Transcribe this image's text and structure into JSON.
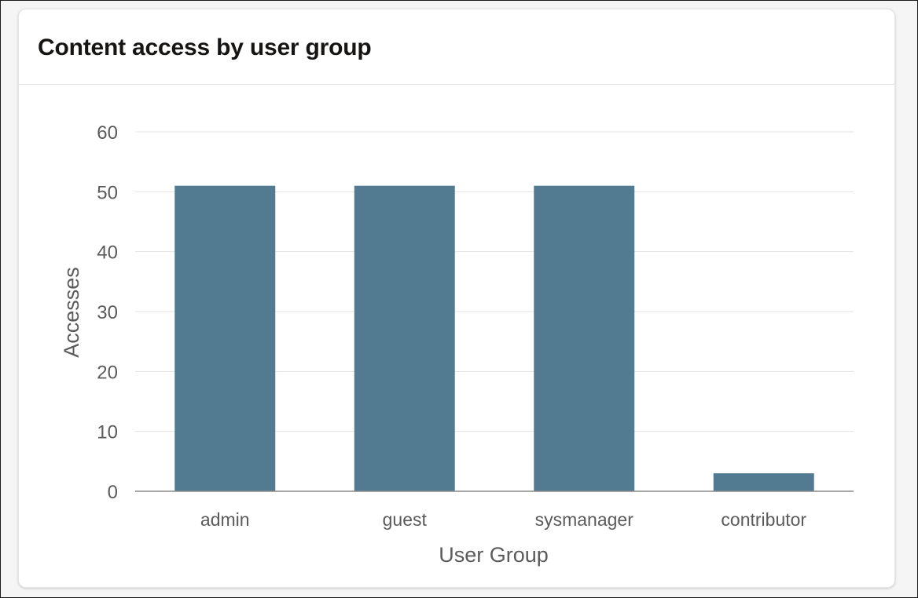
{
  "card": {
    "title": "Content access by user group"
  },
  "chart_data": {
    "type": "bar",
    "categories": [
      "admin",
      "guest",
      "sysmanager",
      "contributor"
    ],
    "values": [
      51,
      51,
      51,
      3
    ],
    "xlabel": "User Group",
    "ylabel": "Accesses",
    "ylim": [
      0,
      60
    ],
    "yticks": [
      0,
      10,
      20,
      30,
      40,
      50,
      60
    ],
    "grid": true,
    "bar_color": "#527a91"
  }
}
